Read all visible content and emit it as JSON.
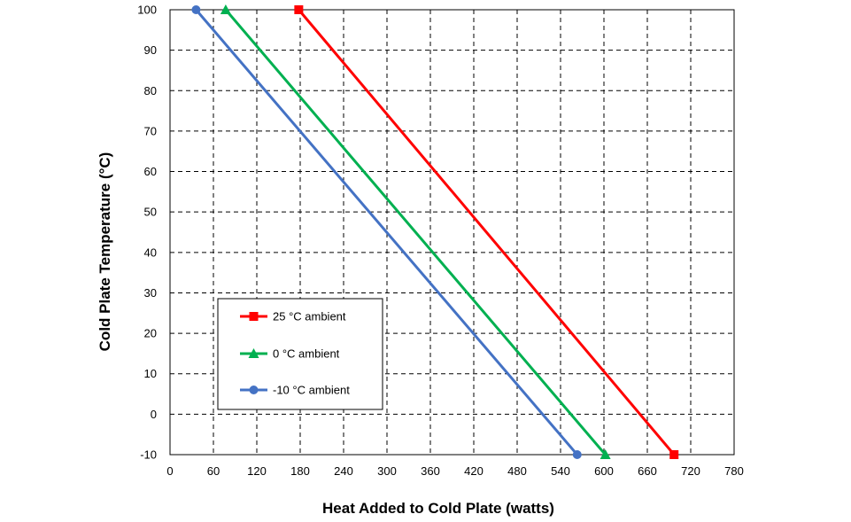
{
  "chart_data": {
    "type": "line",
    "xlabel": "Heat Added to Cold Plate (watts)",
    "ylabel": "Cold Plate Temperature (°C)",
    "xlim": [
      0,
      780
    ],
    "ylim": [
      -10,
      100
    ],
    "x_ticks": [
      0,
      60,
      120,
      180,
      240,
      300,
      360,
      420,
      480,
      540,
      600,
      660,
      720,
      780
    ],
    "y_ticks": [
      -10,
      0,
      10,
      20,
      30,
      40,
      50,
      60,
      70,
      80,
      90,
      100
    ],
    "grid": true,
    "grid_style": "dashed",
    "legend_position": "lower-left",
    "series": [
      {
        "name": "25 °C ambient",
        "color": "#ff0000",
        "marker": "square",
        "x": [
          178,
          697
        ],
        "y": [
          100,
          -10
        ]
      },
      {
        "name": "0 °C ambient",
        "color": "#00b050",
        "marker": "triangle",
        "x": [
          77,
          602
        ],
        "y": [
          100,
          -10
        ]
      },
      {
        "name": "-10 °C ambient",
        "color": "#4472c4",
        "marker": "circle",
        "x": [
          36,
          563
        ],
        "y": [
          100,
          -10
        ]
      }
    ]
  }
}
